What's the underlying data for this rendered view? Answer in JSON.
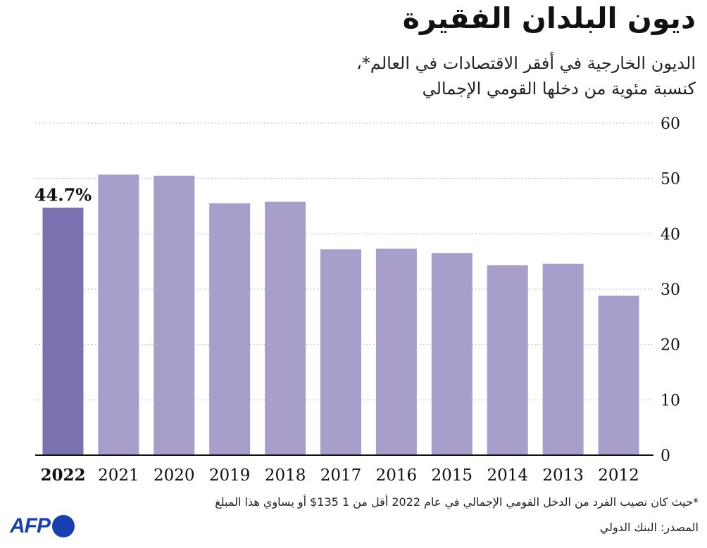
{
  "title": "ديون البلدان الفقيرة",
  "subtitle": {
    "line1": "الديون الخارجية في أفقر الاقتصادات في العالم*،",
    "line2": "كنسبة مئوية من دخلها القومي الإجمالي"
  },
  "footnote": "*حيث كان نصيب الفرد من الدخل القومي الإجمالي في عام 2022 أقل من 1 135$ أو يساوي هذا المبلغ",
  "source": "المصدر: البنك الدولي",
  "logo": {
    "text": "AFP"
  },
  "colors": {
    "bar": "#a89ecb",
    "highlight": "#7a71b1",
    "gridline": "#bdbdbd",
    "axis": "#111111",
    "logo": "#1a3fb0"
  },
  "chart_data": {
    "type": "bar",
    "categories": [
      "2022",
      "2021",
      "2020",
      "2019",
      "2018",
      "2017",
      "2016",
      "2015",
      "2014",
      "2013",
      "2012"
    ],
    "values": [
      44.7,
      50.7,
      50.5,
      45.5,
      45.8,
      37.2,
      37.3,
      36.5,
      34.3,
      34.6,
      28.8
    ],
    "ylim": [
      0,
      60
    ],
    "yticks": [
      0,
      10,
      20,
      30,
      40,
      50,
      60
    ],
    "highlight_index": 0,
    "highlight_label": "44.7%",
    "axis_side": "right",
    "grid": true,
    "xlabel": "",
    "ylabel": ""
  }
}
